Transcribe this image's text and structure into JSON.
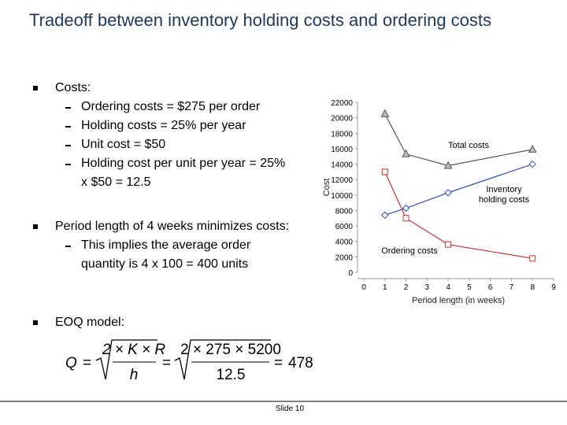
{
  "slide": {
    "title": "Tradeoff between inventory holding costs and ordering costs",
    "bullets": [
      {
        "text": "Costs:",
        "subs": [
          "Ordering costs = $275 per order",
          "Holding costs = 25% per year",
          "Unit cost = $50",
          "Holding cost per unit per year = 25% x $50 = 12.5"
        ]
      },
      {
        "text": "Period length of 4 weeks minimizes costs:",
        "subs": [
          "This implies the average order quantity is 4 x 100 = 400 units"
        ]
      },
      {
        "text": "EOQ model:",
        "subs": []
      }
    ],
    "formula": {
      "lhs": "Q",
      "equals": "=",
      "num1": "2 × K × R",
      "den1": "h",
      "num2": "2 × 275 × 5200",
      "den2": "12.5",
      "result": "478"
    },
    "footer": "Slide 10"
  },
  "chart_data": {
    "type": "line",
    "x_label": "Period length (in weeks)",
    "y_label": "Cost",
    "xlim": [
      0,
      9
    ],
    "xticks": [
      0,
      1,
      2,
      3,
      4,
      5,
      6,
      7,
      8,
      9
    ],
    "ylim": [
      0,
      22000
    ],
    "yticks": [
      0,
      2000,
      4000,
      6000,
      8000,
      10000,
      12000,
      14000,
      16000,
      18000,
      20000,
      22000
    ],
    "x": [
      1,
      2,
      4,
      8
    ],
    "series": [
      {
        "name": "Total costs",
        "color": "#555555",
        "marker": "triangle",
        "values": [
          20500,
          15300,
          13800,
          15900
        ]
      },
      {
        "name": "Inventory holding costs",
        "color": "#3050c8",
        "marker": "diamond",
        "values": [
          7400,
          8300,
          10300,
          14000
        ]
      },
      {
        "name": "Ordering costs",
        "color": "#d03030",
        "marker": "square",
        "values": [
          13000,
          7000,
          3600,
          1800
        ]
      }
    ]
  }
}
